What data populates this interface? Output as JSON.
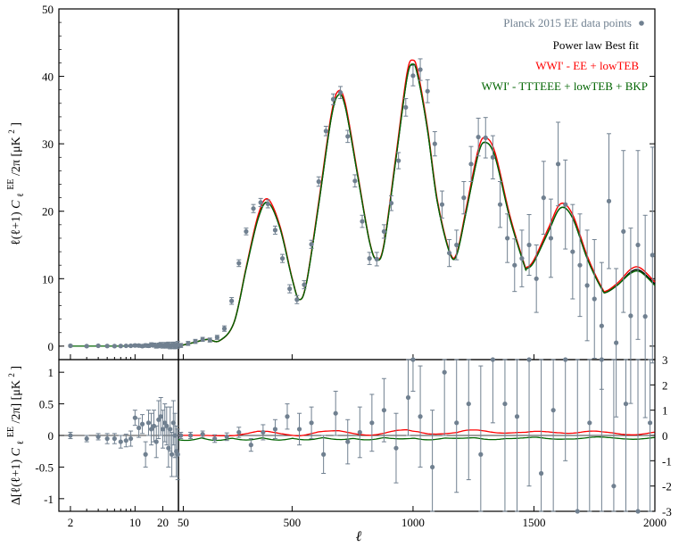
{
  "chart_data": [
    {
      "panel": "top",
      "type": "scatter",
      "ylabel": "ℓ(ℓ+1)C_ℓ^EE/2π [μK²]",
      "ylim": [
        -2,
        50
      ],
      "y_ticks": [
        "0",
        "10",
        "20",
        "30",
        "40",
        "50"
      ],
      "x_left": {
        "scale": "log",
        "range": [
          1.5,
          29
        ],
        "ticks": [
          2,
          10,
          20
        ]
      },
      "x_right": {
        "scale": "linear",
        "range": [
          30,
          2000
        ],
        "ticks": [
          50,
          500,
          1000,
          1500,
          2000
        ]
      },
      "legend": {
        "position": "top-right",
        "entries": [
          {
            "label": "Planck 2015 EE data points",
            "color": "#708090"
          },
          {
            "label": "Power law Best fit",
            "color": "#000000"
          },
          {
            "label": "WWI' - EE + lowTEB",
            "color": "#ff0000"
          },
          {
            "label": "WWI' - TTTEEE + lowTEB + BKP",
            "color": "#006400"
          }
        ]
      },
      "data_points_low_l": {
        "x": [
          2,
          3,
          4,
          5,
          6,
          7,
          8,
          9,
          10,
          11,
          12,
          13,
          14,
          15,
          16,
          17,
          18,
          19,
          20,
          21,
          22,
          23,
          24,
          25,
          26,
          27,
          28,
          29
        ],
        "y": [
          0.05,
          0.0,
          0.05,
          0.02,
          0.0,
          0.02,
          0.04,
          0.05,
          0.1,
          0.08,
          0.0,
          0.1,
          0.05,
          0.2,
          0.15,
          0.0,
          0.1,
          0.2,
          0.05,
          0.15,
          0.1,
          0.2,
          0.0,
          0.1,
          0.15,
          0.05,
          0.1,
          0.2
        ],
        "err": [
          0.15,
          0.12,
          0.12,
          0.12,
          0.12,
          0.12,
          0.12,
          0.15,
          0.2,
          0.2,
          0.2,
          0.25,
          0.25,
          0.3,
          0.3,
          0.3,
          0.35,
          0.35,
          0.35,
          0.4,
          0.4,
          0.4,
          0.4,
          0.45,
          0.45,
          0.45,
          0.45,
          0.5
        ]
      },
      "data_points_high_l": {
        "x": [
          40,
          70,
          100,
          130,
          160,
          190,
          220,
          250,
          280,
          310,
          340,
          370,
          400,
          430,
          460,
          490,
          520,
          550,
          580,
          610,
          640,
          670,
          700,
          730,
          760,
          790,
          820,
          850,
          880,
          910,
          940,
          970,
          1000,
          1030,
          1060,
          1090,
          1120,
          1150,
          1180,
          1210,
          1240,
          1270,
          1300,
          1330,
          1360,
          1390,
          1420,
          1450,
          1480,
          1510,
          1540,
          1570,
          1600,
          1630,
          1660,
          1690,
          1720,
          1750,
          1780,
          1810,
          1840,
          1870,
          1900,
          1930,
          1960,
          1990
        ],
        "y": [
          0.1,
          0.4,
          0.7,
          1.0,
          0.9,
          1.3,
          2.6,
          6.7,
          12.3,
          17.0,
          20.4,
          21.3,
          21.1,
          17.2,
          13.0,
          8.5,
          6.9,
          9.1,
          15.1,
          24.4,
          31.9,
          36.6,
          37.6,
          31.1,
          24.5,
          18.5,
          13.0,
          12.9,
          17.0,
          21.2,
          27.5,
          35.4,
          40.1,
          41.0,
          37.8,
          30.0,
          21.0,
          13.8,
          15.0,
          22.0,
          27.0,
          31.0,
          30.9,
          28.0,
          21.0,
          16.0,
          12.0,
          13.0,
          15.0,
          10.0,
          22.0,
          16.0,
          27.0,
          21.0,
          14.0,
          12.0,
          9.0,
          7.0,
          3.0,
          21.5,
          0.5,
          17.0,
          4.5,
          15.0,
          4.4,
          13.5
        ],
        "err": [
          0.3,
          0.3,
          0.3,
          0.3,
          0.3,
          0.3,
          0.4,
          0.5,
          0.5,
          0.5,
          0.6,
          0.6,
          0.6,
          0.6,
          0.6,
          0.6,
          0.6,
          0.6,
          0.6,
          0.7,
          0.7,
          0.8,
          0.9,
          0.9,
          0.9,
          0.9,
          0.9,
          1.0,
          1.0,
          1.1,
          1.2,
          1.3,
          1.5,
          1.6,
          1.7,
          1.8,
          2.0,
          2.0,
          2.2,
          2.4,
          2.6,
          2.8,
          3.0,
          3.2,
          3.4,
          3.6,
          3.9,
          4.2,
          4.5,
          5.0,
          5.4,
          5.8,
          6.2,
          6.6,
          7.0,
          7.6,
          8.2,
          8.8,
          9.4,
          10.0,
          11.0,
          12.0,
          13.0,
          14.0,
          15.0,
          16.0
        ]
      },
      "model_peaks": {
        "l": [
          30,
          100,
          150,
          200,
          260,
          310,
          360,
          400,
          450,
          500,
          530,
          560,
          610,
          660,
          690,
          720,
          770,
          820,
          850,
          880,
          930,
          975,
          1000,
          1020,
          1060,
          1100,
          1150,
          1180,
          1220,
          1270,
          1300,
          1340,
          1400,
          1460,
          1470,
          1500,
          1560,
          1610,
          1660,
          1720,
          1780,
          1800,
          1850,
          1900,
          1940,
          2000
        ],
        "best_fit": [
          0.0,
          0.6,
          1.0,
          0.8,
          3.5,
          11.5,
          19.0,
          21.3,
          17.5,
          10.0,
          6.9,
          9.5,
          21.0,
          33.5,
          37.2,
          35.5,
          25.5,
          15.5,
          12.8,
          15.0,
          28.0,
          39.8,
          41.8,
          40.0,
          32.0,
          21.5,
          14.0,
          13.5,
          20.0,
          28.5,
          30.2,
          28.0,
          19.0,
          12.0,
          11.5,
          12.5,
          17.0,
          20.5,
          19.0,
          13.0,
          8.5,
          8.0,
          9.2,
          11.0,
          11.2,
          9.2
        ],
        "red": [
          0.0,
          0.6,
          1.0,
          0.8,
          3.5,
          11.7,
          19.5,
          21.8,
          17.8,
          10.1,
          6.9,
          9.6,
          21.4,
          34.0,
          37.8,
          36.0,
          25.8,
          15.6,
          12.9,
          15.2,
          28.5,
          40.5,
          42.4,
          40.6,
          32.4,
          21.8,
          14.2,
          13.7,
          20.5,
          29.2,
          30.9,
          28.6,
          19.4,
          12.2,
          11.7,
          12.8,
          17.5,
          21.1,
          19.5,
          13.4,
          8.7,
          8.2,
          9.5,
          11.4,
          11.6,
          9.5
        ],
        "green": [
          0.0,
          0.6,
          1.0,
          0.8,
          3.5,
          11.5,
          19.0,
          21.3,
          17.5,
          10.0,
          6.9,
          9.5,
          21.0,
          33.5,
          37.2,
          35.5,
          25.5,
          15.5,
          12.8,
          15.0,
          28.0,
          39.8,
          41.8,
          40.0,
          32.0,
          21.5,
          14.0,
          13.5,
          20.0,
          28.5,
          30.2,
          28.0,
          19.0,
          12.0,
          11.5,
          12.5,
          17.0,
          20.5,
          19.0,
          13.0,
          8.5,
          8.0,
          9.2,
          10.8,
          11.0,
          9.0
        ]
      }
    },
    {
      "panel": "bottom",
      "type": "scatter",
      "ylabel": "Δ[ℓ(ℓ+1)C_ℓ^EE/2π] [μK²]",
      "ylabel_ticks_note": "left axis symlog-like; right axis linear",
      "y_left_ticks": [
        "1",
        "0.5",
        "0",
        "-0.5",
        "-1"
      ],
      "y_right_ticks": [
        "3",
        "2",
        "1",
        "0",
        "-1",
        "-2",
        "-3"
      ],
      "xlabel": "ℓ",
      "x_ticks": [
        "2",
        "10",
        "20",
        "50",
        "500",
        "1000",
        "1500",
        "2000"
      ],
      "residual_low_l": {
        "x": [
          2,
          3,
          4,
          5,
          6,
          7,
          8,
          9,
          10,
          11,
          12,
          13,
          14,
          15,
          16,
          17,
          18,
          19,
          20,
          21,
          22,
          23,
          24,
          25,
          26,
          27,
          28,
          29
        ],
        "y": [
          0.0,
          -0.05,
          -0.02,
          -0.05,
          -0.05,
          -0.1,
          -0.08,
          -0.05,
          0.28,
          0.12,
          0.18,
          -0.3,
          0.2,
          0.1,
          0.15,
          -0.1,
          0.25,
          0.3,
          0.1,
          0.2,
          0.15,
          -0.2,
          0.1,
          -0.3,
          0.2,
          0.0,
          -0.25,
          -0.3
        ],
        "err": [
          0.05,
          0.05,
          0.05,
          0.08,
          0.08,
          0.1,
          0.1,
          0.12,
          0.12,
          0.15,
          0.15,
          0.2,
          0.2,
          0.25,
          0.25,
          0.25,
          0.3,
          0.3,
          0.3,
          0.3,
          0.3,
          0.3,
          0.35,
          0.35,
          0.35,
          0.35,
          0.4,
          0.4
        ]
      },
      "residual_high_l": {
        "x": [
          40,
          80,
          130,
          180,
          230,
          280,
          330,
          380,
          430,
          480,
          530,
          580,
          630,
          680,
          730,
          780,
          830,
          880,
          930,
          980,
          1000,
          1030,
          1080,
          1130,
          1180,
          1230,
          1280,
          1330,
          1380,
          1430,
          1480,
          1530,
          1580,
          1630,
          1680,
          1730,
          1780,
          1830,
          1880,
          1930,
          1980
        ],
        "y": [
          0.0,
          0.0,
          0.02,
          -0.05,
          -0.02,
          0.05,
          -0.15,
          0.05,
          0.1,
          0.3,
          0.1,
          0.2,
          -0.3,
          0.35,
          -0.1,
          0.05,
          0.2,
          0.4,
          -0.2,
          0.6,
          1.5,
          0.3,
          -0.5,
          1.0,
          0.2,
          0.5,
          -0.3,
          1.8,
          0.5,
          0.3,
          1.4,
          -0.6,
          0.4,
          2.4,
          -1.5,
          0.2,
          1.6,
          -0.8,
          0.5,
          -1.4,
          0.2
        ],
        "err": [
          0.05,
          0.05,
          0.05,
          0.06,
          0.06,
          0.08,
          0.1,
          0.12,
          0.15,
          0.2,
          0.25,
          0.25,
          0.3,
          0.35,
          0.35,
          0.4,
          0.45,
          0.5,
          0.55,
          0.6,
          0.8,
          0.8,
          0.9,
          1.0,
          1.1,
          1.2,
          1.4,
          1.6,
          1.8,
          2.0,
          2.2,
          2.4,
          2.6,
          2.8,
          3.0,
          3.0,
          3.0,
          3.0,
          3.0,
          3.0,
          3.0
        ]
      }
    }
  ],
  "labels": {
    "top_ylabel_main": "ℓ(ℓ+1)",
    "top_ylabel_c": "C",
    "top_ylabel_sub": "ℓ",
    "top_ylabel_sup": "EE",
    "top_ylabel_tail": "/2π [μK",
    "top_ylabel_sq": "2",
    "top_ylabel_close": "]",
    "bottom_ylabel_main": "Δ[ℓ(ℓ+1)",
    "bottom_ylabel_tail": "/2π] [μK",
    "xlabel": "ℓ"
  },
  "colors": {
    "points": "#708090",
    "best_fit": "#000000",
    "red": "#ff0000",
    "green": "#006400"
  }
}
